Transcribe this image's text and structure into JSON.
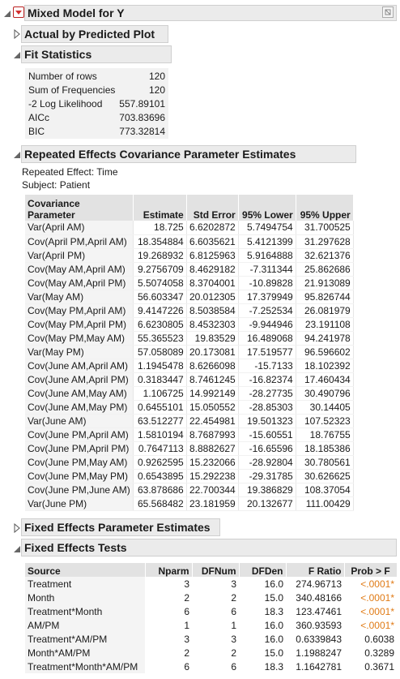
{
  "report_title": "Mixed Model for Y",
  "sections": {
    "actual_by_predicted": "Actual by Predicted Plot",
    "fit_statistics": "Fit Statistics",
    "repeated_effects": "Repeated Effects Covariance Parameter Estimates",
    "fixed_effects_params": "Fixed Effects Parameter Estimates",
    "fixed_effects_tests": "Fixed Effects Tests"
  },
  "fit_statistics": [
    {
      "label": "Number of rows",
      "value": "120"
    },
    {
      "label": "Sum of Frequencies",
      "value": "120"
    },
    {
      "label": "-2 Log Likelihood",
      "value": "557.89101"
    },
    {
      "label": "AICc",
      "value": "703.83696"
    },
    {
      "label": "BIC",
      "value": "773.32814"
    }
  ],
  "repeated_effect_text": "Repeated Effect: Time",
  "subject_text": "Subject: Patient",
  "cov_table": {
    "headers": [
      "Covariance\nParameter",
      "Estimate",
      "Std Error",
      "95% Lower",
      "95% Upper"
    ],
    "rows": [
      [
        "Var(April AM)",
        "18.725",
        "6.6202872",
        "5.7494754",
        "31.700525"
      ],
      [
        "Cov(April PM,April AM)",
        "18.354884",
        "6.6035621",
        "5.4121399",
        "31.297628"
      ],
      [
        "Var(April PM)",
        "19.268932",
        "6.8125963",
        "5.9164888",
        "32.621376"
      ],
      [
        "Cov(May AM,April AM)",
        "9.2756709",
        "8.4629182",
        "-7.311344",
        "25.862686"
      ],
      [
        "Cov(May AM,April PM)",
        "5.5074058",
        "8.3704001",
        "-10.89828",
        "21.913089"
      ],
      [
        "Var(May AM)",
        "56.603347",
        "20.012305",
        "17.379949",
        "95.826744"
      ],
      [
        "Cov(May PM,April AM)",
        "9.4147226",
        "8.5038584",
        "-7.252534",
        "26.081979"
      ],
      [
        "Cov(May PM,April PM)",
        "6.6230805",
        "8.4532303",
        "-9.944946",
        "23.191108"
      ],
      [
        "Cov(May PM,May AM)",
        "55.365523",
        "19.83529",
        "16.489068",
        "94.241978"
      ],
      [
        "Var(May PM)",
        "57.058089",
        "20.173081",
        "17.519577",
        "96.596602"
      ],
      [
        "Cov(June AM,April AM)",
        "1.1945478",
        "8.6266098",
        "-15.7133",
        "18.102392"
      ],
      [
        "Cov(June AM,April PM)",
        "0.3183447",
        "8.7461245",
        "-16.82374",
        "17.460434"
      ],
      [
        "Cov(June AM,May AM)",
        "1.106725",
        "14.992149",
        "-28.27735",
        "30.490796"
      ],
      [
        "Cov(June AM,May PM)",
        "0.6455101",
        "15.050552",
        "-28.85303",
        "30.14405"
      ],
      [
        "Var(June AM)",
        "63.512277",
        "22.454981",
        "19.501323",
        "107.52323"
      ],
      [
        "Cov(June PM,April AM)",
        "1.5810194",
        "8.7687993",
        "-15.60551",
        "18.76755"
      ],
      [
        "Cov(June PM,April PM)",
        "0.7647113",
        "8.8882627",
        "-16.65596",
        "18.185386"
      ],
      [
        "Cov(June PM,May AM)",
        "0.9262595",
        "15.232066",
        "-28.92804",
        "30.780561"
      ],
      [
        "Cov(June PM,May PM)",
        "0.6543895",
        "15.292238",
        "-29.31785",
        "30.626625"
      ],
      [
        "Cov(June PM,June AM)",
        "63.878686",
        "22.700344",
        "19.386829",
        "108.37054"
      ],
      [
        "Var(June PM)",
        "65.568482",
        "23.181959",
        "20.132677",
        "111.00429"
      ]
    ]
  },
  "fet_table": {
    "headers": [
      "Source",
      "Nparm",
      "DFNum",
      "DFDen",
      "F Ratio",
      "Prob > F"
    ],
    "rows": [
      [
        "Treatment",
        "3",
        "3",
        "16.0",
        "274.96713",
        "<.0001*"
      ],
      [
        "Month",
        "2",
        "2",
        "15.0",
        "340.48166",
        "<.0001*"
      ],
      [
        "Treatment*Month",
        "6",
        "6",
        "18.3",
        "123.47461",
        "<.0001*"
      ],
      [
        "AM/PM",
        "1",
        "1",
        "16.0",
        "360.93593",
        "<.0001*"
      ],
      [
        "Treatment*AM/PM",
        "3",
        "3",
        "16.0",
        "0.6339843",
        "0.6038"
      ],
      [
        "Month*AM/PM",
        "2",
        "2",
        "15.0",
        "1.1988247",
        "0.3289"
      ],
      [
        "Treatment*Month*AM/PM",
        "6",
        "6",
        "18.3",
        "1.1642781",
        "0.3671"
      ]
    ],
    "significant_color": "#e07b16"
  },
  "colors": {
    "menu_red": "#d32f2f",
    "header_gray": "#ebebeb"
  },
  "icons": {
    "menu": "red-hotspot-triangle",
    "outline_open": "disclosure-open",
    "outline_closed": "disclosure-closed",
    "corner": "pin-icon"
  }
}
